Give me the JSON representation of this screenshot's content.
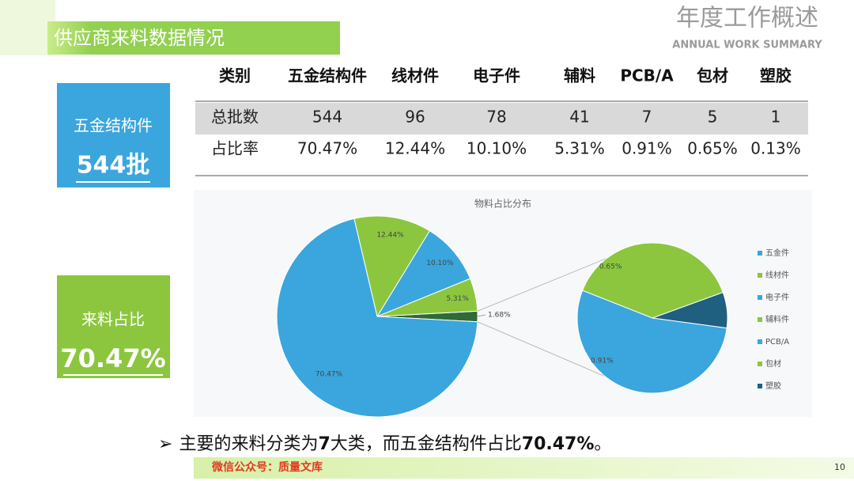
{
  "header": {
    "title": "年度工作概述",
    "subtitle": "ANNUAL WORK SUMMARY"
  },
  "section_title": "供应商来料数据情况",
  "cards": [
    {
      "label": "五金结构件",
      "value": "544批"
    },
    {
      "label": "来料占比",
      "value": "70.47%"
    }
  ],
  "table": {
    "header": [
      "类别",
      "五金结构件",
      "线材件",
      "电子件",
      "辅料",
      "PCB/A",
      "包材",
      "塑胶"
    ],
    "rows": [
      [
        "总批数",
        "544",
        "96",
        "78",
        "41",
        "7",
        "5",
        "1"
      ],
      [
        "占比率",
        "70.47%",
        "12.44%",
        "10.10%",
        "5.31%",
        "0.91%",
        "0.65%",
        "0.13%"
      ]
    ]
  },
  "chart_data": {
    "type": "pie-of-pie",
    "title": "物料占比分布",
    "slices": [
      {
        "name": "五金件",
        "color": "#3aa6dd",
        "value": 70.47,
        "value_label": "70.47%"
      },
      {
        "name": "线材件",
        "color": "#8cc63f",
        "value": 12.44,
        "value_label": "12.44%"
      },
      {
        "name": "电子件",
        "color": "#3aa6dd",
        "value": 10.1,
        "value_label": "10.10%"
      },
      {
        "name": "辅料件",
        "color": "#8cc63f",
        "value": 5.31,
        "value_label": "5.31%"
      }
    ],
    "other": {
      "color": "#2e6b36",
      "value": 1.68,
      "value_label": "1.68%"
    },
    "secondary": [
      {
        "name": "PCB/A",
        "color": "#3aa6dd",
        "value": 0.91,
        "value_label": "0.91%"
      },
      {
        "name": "包材",
        "color": "#8cc63f",
        "value": 0.65,
        "value_label": "0.65%"
      },
      {
        "name": "塑胶",
        "color": "#1f5f80",
        "value": 0.13
      }
    ]
  },
  "summary": {
    "bullet": "➢",
    "parts": [
      "主要的来料分类为",
      "7",
      "大类，而五金结构件占比",
      "70.47%",
      "。"
    ]
  },
  "footer": {
    "text": "微信公众号：质量文库",
    "page": "10"
  }
}
